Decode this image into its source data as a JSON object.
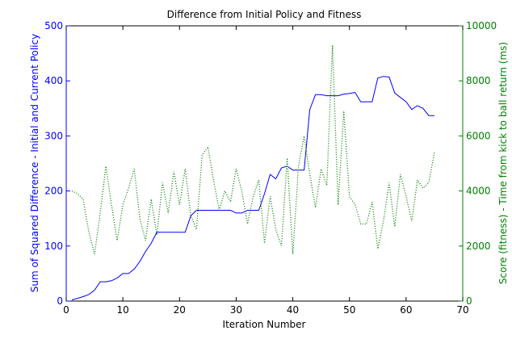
{
  "chart_data": {
    "type": "line",
    "title": "Difference from Initial Policy and Fitness",
    "xlabel": "Iteration Number",
    "xlim": [
      0,
      70
    ],
    "x_ticks": [
      0,
      10,
      20,
      30,
      40,
      50,
      60,
      70
    ],
    "y_left": {
      "label": "Sum of Squared Difference - Initial and Current Policy",
      "lim": [
        0,
        500
      ],
      "ticks": [
        0,
        100,
        200,
        300,
        400,
        500
      ],
      "color": "#0000ff"
    },
    "y_right": {
      "label": "Score (fitness) - Time from kick to ball return (ms)",
      "lim": [
        0,
        10000
      ],
      "ticks": [
        0,
        2000,
        4000,
        6000,
        8000,
        10000
      ],
      "color": "#008000"
    },
    "grid": false,
    "series": [
      {
        "axis": "left",
        "style": "solid",
        "color": "#0000ff",
        "x": [
          1,
          2,
          3,
          4,
          5,
          6,
          7,
          8,
          9,
          10,
          11,
          12,
          13,
          14,
          15,
          16,
          17,
          18,
          19,
          20,
          21,
          22,
          23,
          24,
          25,
          26,
          27,
          28,
          29,
          30,
          31,
          32,
          33,
          34,
          35,
          36,
          37,
          38,
          39,
          40,
          41,
          42,
          43,
          44,
          45,
          46,
          47,
          48,
          49,
          50,
          51,
          52,
          53,
          54,
          55,
          56,
          57,
          58,
          59,
          60,
          61,
          62,
          63,
          64,
          65
        ],
        "values": [
          2,
          5,
          8,
          12,
          20,
          35,
          35,
          37,
          42,
          50,
          50,
          58,
          72,
          90,
          105,
          125,
          125,
          125,
          125,
          125,
          125,
          155,
          165,
          165,
          165,
          165,
          165,
          165,
          165,
          160,
          160,
          165,
          165,
          165,
          195,
          230,
          222,
          242,
          245,
          238,
          238,
          238,
          348,
          375,
          375,
          373,
          373,
          373,
          376,
          377,
          379,
          362,
          362,
          362,
          405,
          408,
          407,
          378,
          370,
          362,
          348,
          355,
          350,
          337,
          337
        ]
      },
      {
        "axis": "right",
        "style": "dotted",
        "color": "#008000",
        "x": [
          1,
          2,
          3,
          4,
          5,
          6,
          7,
          8,
          9,
          10,
          11,
          12,
          13,
          14,
          15,
          16,
          17,
          18,
          19,
          20,
          21,
          22,
          23,
          24,
          25,
          26,
          27,
          28,
          29,
          30,
          31,
          32,
          33,
          34,
          35,
          36,
          37,
          38,
          39,
          40,
          41,
          42,
          43,
          44,
          45,
          46,
          47,
          48,
          49,
          50,
          51,
          52,
          53,
          54,
          55,
          56,
          57,
          58,
          59,
          60,
          61,
          62,
          63,
          64,
          65
        ],
        "values": [
          4000,
          3900,
          3700,
          2500,
          1700,
          3200,
          4900,
          3500,
          2200,
          3500,
          4100,
          4800,
          3000,
          2200,
          3700,
          2400,
          4300,
          3200,
          4700,
          3500,
          4800,
          3100,
          2600,
          5300,
          5600,
          4400,
          3300,
          4000,
          3600,
          4800,
          4000,
          2800,
          3800,
          4400,
          2100,
          3800,
          2600,
          2000,
          5200,
          1700,
          4900,
          6000,
          4600,
          3400,
          4800,
          4200,
          9300,
          3500,
          6900,
          3800,
          3500,
          2800,
          2800,
          3600,
          1900,
          2900,
          4300,
          2700,
          4600,
          3800,
          2900,
          4400,
          4100,
          4300,
          5400
        ]
      }
    ]
  }
}
